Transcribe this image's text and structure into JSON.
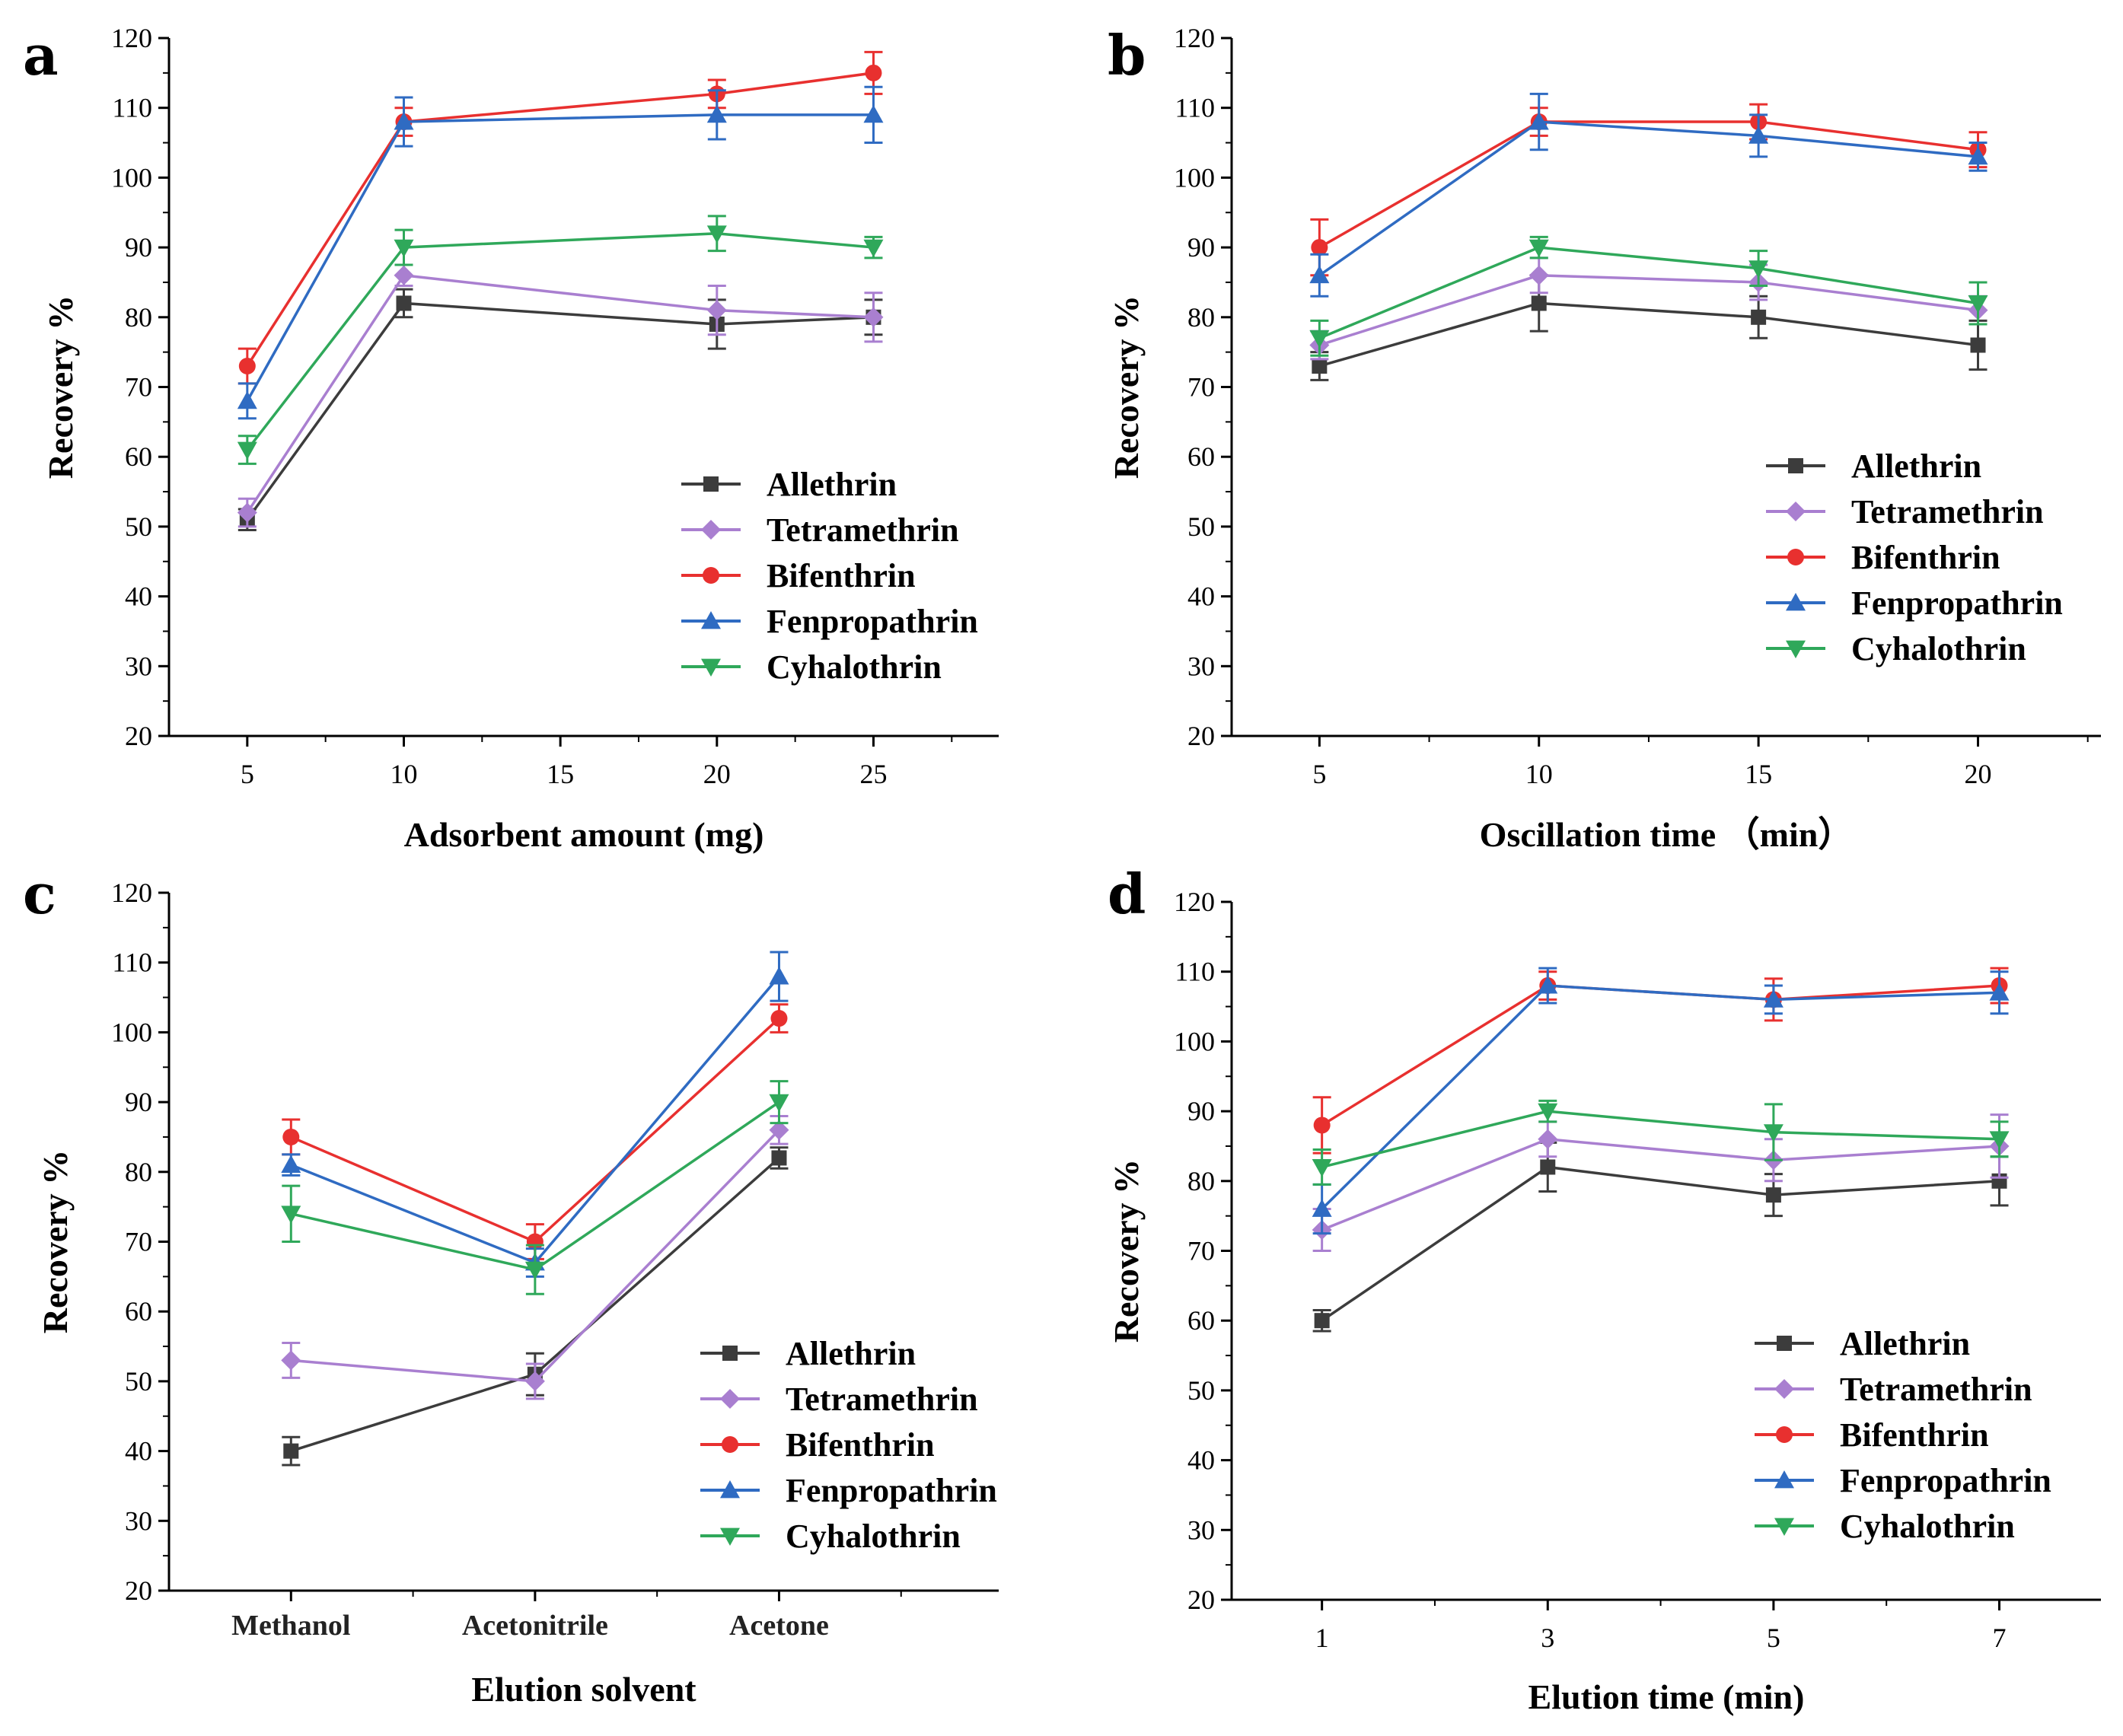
{
  "colors": {
    "Allethrin": "#3c3c3c",
    "Tetramethrin": "#a97fd0",
    "Bifenthrin": "#e8302f",
    "Fenpropathrin": "#2f6bc2",
    "Cyhalothrin": "#2fa85a"
  },
  "chart_data": [
    {
      "panel": "a",
      "type": "line",
      "xlabel": "Adsorbent amount (mg)",
      "ylabel": "Recovery %",
      "xlim": [
        2.5,
        29
      ],
      "ylim": [
        20,
        120
      ],
      "xticks": [
        "5",
        "10",
        "15",
        "20",
        "25"
      ],
      "xtick_values": [
        5,
        10,
        15,
        20,
        25
      ],
      "yticks": [
        "20",
        "30",
        "40",
        "50",
        "60",
        "70",
        "80",
        "90",
        "100",
        "110",
        "120"
      ],
      "x": [
        5,
        10,
        20,
        25
      ],
      "series": [
        {
          "name": "Allethrin",
          "marker": "square",
          "values": [
            51,
            82,
            79,
            80
          ],
          "errors": [
            1.5,
            2,
            3.5,
            2.5
          ]
        },
        {
          "name": "Tetramethrin",
          "marker": "diamond",
          "values": [
            52,
            86,
            81,
            80
          ],
          "errors": [
            2,
            1.5,
            3.5,
            3.5
          ]
        },
        {
          "name": "Bifenthrin",
          "marker": "circle",
          "values": [
            73,
            108,
            112,
            115
          ],
          "errors": [
            2.5,
            2,
            2,
            3
          ]
        },
        {
          "name": "Fenpropathrin",
          "marker": "triangle-up",
          "values": [
            68,
            108,
            109,
            109
          ],
          "errors": [
            2.5,
            3.5,
            3.5,
            4
          ]
        },
        {
          "name": "Cyhalothrin",
          "marker": "triangle-down",
          "values": [
            61,
            90,
            92,
            90
          ],
          "errors": [
            2,
            2.5,
            2.5,
            1.5
          ]
        }
      ],
      "legend": [
        "Allethrin",
        "Tetramethrin",
        "Bifenthrin",
        "Fenpropathrin",
        "Cyhalothrin"
      ]
    },
    {
      "panel": "b",
      "type": "line",
      "xlabel": "Oscillation time （min）",
      "ylabel": "Recovery %",
      "xlim": [
        3,
        22.8
      ],
      "ylim": [
        20,
        120
      ],
      "xticks": [
        "5",
        "10",
        "15",
        "20"
      ],
      "xtick_values": [
        5,
        10,
        15,
        20
      ],
      "yticks": [
        "20",
        "30",
        "40",
        "50",
        "60",
        "70",
        "80",
        "90",
        "100",
        "110",
        "120"
      ],
      "x": [
        5,
        10,
        15,
        20
      ],
      "series": [
        {
          "name": "Allethrin",
          "marker": "square",
          "values": [
            73,
            82,
            80,
            76
          ],
          "errors": [
            2,
            4,
            3,
            3.5
          ]
        },
        {
          "name": "Tetramethrin",
          "marker": "diamond",
          "values": [
            76,
            86,
            85,
            81
          ],
          "errors": [
            2,
            2.5,
            2.5,
            2
          ]
        },
        {
          "name": "Bifenthrin",
          "marker": "circle",
          "values": [
            90,
            108,
            108,
            104
          ],
          "errors": [
            4,
            2,
            2.5,
            2.5
          ]
        },
        {
          "name": "Fenpropathrin",
          "marker": "triangle-up",
          "values": [
            86,
            108,
            106,
            103
          ],
          "errors": [
            3,
            4,
            3,
            2
          ]
        },
        {
          "name": "Cyhalothrin",
          "marker": "triangle-down",
          "values": [
            77,
            90,
            87,
            82
          ],
          "errors": [
            2.5,
            1.5,
            2.5,
            3
          ]
        }
      ],
      "legend": [
        "Allethrin",
        "Tetramethrin",
        "Bifenthrin",
        "Fenpropathrin",
        "Cyhalothrin"
      ]
    },
    {
      "panel": "c",
      "type": "line",
      "xlabel": "Elution solvent",
      "ylabel": "Recovery %",
      "categorical": true,
      "xlim": [
        0.5,
        3.9
      ],
      "ylim": [
        20,
        120
      ],
      "categories": [
        "Methanol",
        "Acetonitrile",
        "Acetone"
      ],
      "yticks": [
        "20",
        "30",
        "40",
        "50",
        "60",
        "70",
        "80",
        "90",
        "100",
        "110",
        "120"
      ],
      "series": [
        {
          "name": "Allethrin",
          "marker": "square",
          "values": [
            40,
            51,
            82
          ],
          "errors": [
            2,
            3,
            1.5
          ]
        },
        {
          "name": "Tetramethrin",
          "marker": "diamond",
          "values": [
            53,
            50,
            86
          ],
          "errors": [
            2.5,
            2.5,
            2
          ]
        },
        {
          "name": "Bifenthrin",
          "marker": "circle",
          "values": [
            85,
            70,
            102
          ],
          "errors": [
            2.5,
            2.5,
            2
          ]
        },
        {
          "name": "Fenpropathrin",
          "marker": "triangle-up",
          "values": [
            81,
            67,
            108
          ],
          "errors": [
            1.5,
            2,
            3.5
          ]
        },
        {
          "name": "Cyhalothrin",
          "marker": "triangle-down",
          "values": [
            74,
            66,
            90
          ],
          "errors": [
            4,
            3.5,
            3
          ]
        }
      ],
      "legend": [
        "Allethrin",
        "Tetramethrin",
        "Bifenthrin",
        "Fenpropathrin",
        "Cyhalothrin"
      ]
    },
    {
      "panel": "d",
      "type": "line",
      "xlabel": "Elution time (min)",
      "ylabel": "Recovery %",
      "xlim": [
        0.2,
        7.9
      ],
      "ylim": [
        20,
        120
      ],
      "xticks": [
        "1",
        "3",
        "5",
        "7"
      ],
      "xtick_values": [
        1,
        3,
        5,
        7
      ],
      "yticks": [
        "20",
        "30",
        "40",
        "50",
        "60",
        "70",
        "80",
        "90",
        "100",
        "110",
        "120"
      ],
      "x": [
        1,
        3,
        5,
        7
      ],
      "series": [
        {
          "name": "Allethrin",
          "marker": "square",
          "values": [
            60,
            82,
            78,
            80
          ],
          "errors": [
            1.5,
            3.5,
            3,
            3.5
          ]
        },
        {
          "name": "Tetramethrin",
          "marker": "diamond",
          "values": [
            73,
            86,
            83,
            85
          ],
          "errors": [
            3,
            2.5,
            3,
            4.5
          ]
        },
        {
          "name": "Bifenthrin",
          "marker": "circle",
          "values": [
            88,
            108,
            106,
            108
          ],
          "errors": [
            4,
            2,
            3,
            2.5
          ]
        },
        {
          "name": "Fenpropathrin",
          "marker": "triangle-up",
          "values": [
            76,
            108,
            106,
            107
          ],
          "errors": [
            3.5,
            2.5,
            2,
            3
          ]
        },
        {
          "name": "Cyhalothrin",
          "marker": "triangle-down",
          "values": [
            82,
            90,
            87,
            86
          ],
          "errors": [
            2.5,
            1.5,
            4,
            2.5
          ]
        }
      ],
      "legend": [
        "Allethrin",
        "Tetramethrin",
        "Bifenthrin",
        "Fenpropathrin",
        "Cyhalothrin"
      ]
    }
  ]
}
